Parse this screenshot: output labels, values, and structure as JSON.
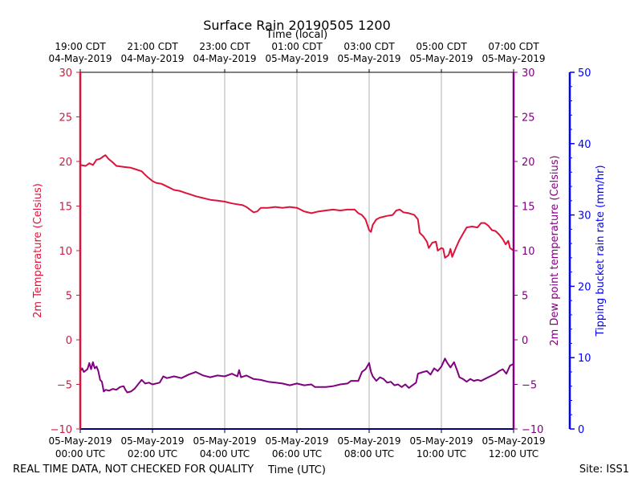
{
  "chart_data": {
    "type": "line",
    "title": "Surface Rain 20190505 1200",
    "xlabel_bottom": "Time (UTC)",
    "xlabel_top": "Time (local)",
    "ylabel_left": "2m Temperature (Celsius)",
    "ylabel_right1": "2m Dew point temperature (Celsius)",
    "ylabel_right2": "Tipping bucket rain rate (mm/hr)",
    "footer_left": "REAL TIME DATA, NOT CHECKED FOR QUALITY",
    "footer_right": "Site: ISS1",
    "x_range_hours": [
      0,
      12
    ],
    "y_left_range": [
      -10,
      30
    ],
    "y_right1_range": [
      -10,
      30
    ],
    "y_right2_range": [
      0,
      50
    ],
    "y_left_ticks": [
      "30",
      "25",
      "20",
      "15",
      "10",
      "5",
      "0",
      "−5",
      "−10"
    ],
    "y_right1_ticks": [
      "30",
      "25",
      "20",
      "15",
      "10",
      "5",
      "0",
      "−5",
      "−10"
    ],
    "y_right2_ticks": [
      "50",
      "40",
      "30",
      "20",
      "10",
      "0"
    ],
    "x_ticks_bottom": [
      {
        "hour": 0,
        "date": "05-May-2019",
        "time": "00:00 UTC"
      },
      {
        "hour": 2,
        "date": "05-May-2019",
        "time": "02:00 UTC"
      },
      {
        "hour": 4,
        "date": "05-May-2019",
        "time": "04:00 UTC"
      },
      {
        "hour": 6,
        "date": "05-May-2019",
        "time": "06:00 UTC"
      },
      {
        "hour": 8,
        "date": "05-May-2019",
        "time": "08:00 UTC"
      },
      {
        "hour": 10,
        "date": "05-May-2019",
        "time": "10:00 UTC"
      },
      {
        "hour": 12,
        "date": "05-May-2019",
        "time": "12:00 UTC"
      }
    ],
    "x_ticks_top": [
      {
        "hour": 0,
        "time": "19:00 CDT",
        "date": "04-May-2019"
      },
      {
        "hour": 2,
        "time": "21:00 CDT",
        "date": "04-May-2019"
      },
      {
        "hour": 4,
        "time": "23:00 CDT",
        "date": "04-May-2019"
      },
      {
        "hour": 6,
        "time": "01:00 CDT",
        "date": "05-May-2019"
      },
      {
        "hour": 8,
        "time": "03:00 CDT",
        "date": "05-May-2019"
      },
      {
        "hour": 10,
        "time": "05:00 CDT",
        "date": "05-May-2019"
      },
      {
        "hour": 12,
        "time": "07:00 CDT",
        "date": "05-May-2019"
      }
    ],
    "grid": "vertical",
    "series": [
      {
        "name": "2m Temperature",
        "color": "#dc143c",
        "axis": "left",
        "points": [
          [
            0,
            19.6
          ],
          [
            0.15,
            19.5
          ],
          [
            0.25,
            19.8
          ],
          [
            0.35,
            19.6
          ],
          [
            0.45,
            20.2
          ],
          [
            0.55,
            20.3
          ],
          [
            0.65,
            20.6
          ],
          [
            0.7,
            20.7
          ],
          [
            0.78,
            20.3
          ],
          [
            0.9,
            19.9
          ],
          [
            1.0,
            19.5
          ],
          [
            1.2,
            19.4
          ],
          [
            1.4,
            19.3
          ],
          [
            1.55,
            19.1
          ],
          [
            1.7,
            18.9
          ],
          [
            1.85,
            18.3
          ],
          [
            2.0,
            17.8
          ],
          [
            2.1,
            17.6
          ],
          [
            2.25,
            17.5
          ],
          [
            2.45,
            17.1
          ],
          [
            2.6,
            16.8
          ],
          [
            2.75,
            16.7
          ],
          [
            2.9,
            16.5
          ],
          [
            3.05,
            16.3
          ],
          [
            3.2,
            16.1
          ],
          [
            3.4,
            15.9
          ],
          [
            3.6,
            15.7
          ],
          [
            3.8,
            15.6
          ],
          [
            4.0,
            15.5
          ],
          [
            4.2,
            15.3
          ],
          [
            4.35,
            15.2
          ],
          [
            4.5,
            15.1
          ],
          [
            4.6,
            14.9
          ],
          [
            4.7,
            14.6
          ],
          [
            4.8,
            14.3
          ],
          [
            4.9,
            14.4
          ],
          [
            5.0,
            14.8
          ],
          [
            5.2,
            14.8
          ],
          [
            5.4,
            14.9
          ],
          [
            5.6,
            14.8
          ],
          [
            5.8,
            14.9
          ],
          [
            6.0,
            14.8
          ],
          [
            6.1,
            14.6
          ],
          [
            6.2,
            14.4
          ],
          [
            6.4,
            14.2
          ],
          [
            6.6,
            14.4
          ],
          [
            6.8,
            14.5
          ],
          [
            7.0,
            14.6
          ],
          [
            7.2,
            14.5
          ],
          [
            7.4,
            14.6
          ],
          [
            7.6,
            14.6
          ],
          [
            7.7,
            14.2
          ],
          [
            7.8,
            14.0
          ],
          [
            7.9,
            13.5
          ],
          [
            8.0,
            12.3
          ],
          [
            8.05,
            12.1
          ],
          [
            8.1,
            12.9
          ],
          [
            8.2,
            13.5
          ],
          [
            8.3,
            13.7
          ],
          [
            8.5,
            13.9
          ],
          [
            8.65,
            14.0
          ],
          [
            8.75,
            14.5
          ],
          [
            8.85,
            14.6
          ],
          [
            8.95,
            14.3
          ],
          [
            9.1,
            14.2
          ],
          [
            9.25,
            14.0
          ],
          [
            9.35,
            13.5
          ],
          [
            9.4,
            12.0
          ],
          [
            9.5,
            11.6
          ],
          [
            9.6,
            11.0
          ],
          [
            9.65,
            10.3
          ],
          [
            9.75,
            10.9
          ],
          [
            9.85,
            11.0
          ],
          [
            9.9,
            10.0
          ],
          [
            10.0,
            10.3
          ],
          [
            10.05,
            10.2
          ],
          [
            10.1,
            9.2
          ],
          [
            10.2,
            9.5
          ],
          [
            10.25,
            10.2
          ],
          [
            10.3,
            9.3
          ],
          [
            10.4,
            10.3
          ],
          [
            10.5,
            11.2
          ],
          [
            10.6,
            11.9
          ],
          [
            10.7,
            12.6
          ],
          [
            10.85,
            12.7
          ],
          [
            11.0,
            12.6
          ],
          [
            11.1,
            13.1
          ],
          [
            11.2,
            13.1
          ],
          [
            11.3,
            12.8
          ],
          [
            11.4,
            12.3
          ],
          [
            11.5,
            12.2
          ],
          [
            11.6,
            11.8
          ],
          [
            11.7,
            11.3
          ],
          [
            11.78,
            10.7
          ],
          [
            11.85,
            11.1
          ],
          [
            11.9,
            10.3
          ],
          [
            12.0,
            10.0
          ]
        ]
      },
      {
        "name": "2m Dew point temperature",
        "color": "#800080",
        "axis": "right1",
        "points": [
          [
            0,
            -3.5
          ],
          [
            0.05,
            -3.2
          ],
          [
            0.1,
            -3.6
          ],
          [
            0.2,
            -3.3
          ],
          [
            0.25,
            -2.6
          ],
          [
            0.3,
            -3.3
          ],
          [
            0.35,
            -2.5
          ],
          [
            0.4,
            -3.2
          ],
          [
            0.45,
            -3.0
          ],
          [
            0.5,
            -3.5
          ],
          [
            0.55,
            -4.5
          ],
          [
            0.6,
            -4.7
          ],
          [
            0.65,
            -5.8
          ],
          [
            0.7,
            -5.6
          ],
          [
            0.8,
            -5.7
          ],
          [
            0.9,
            -5.5
          ],
          [
            1.0,
            -5.6
          ],
          [
            1.1,
            -5.3
          ],
          [
            1.2,
            -5.2
          ],
          [
            1.25,
            -5.6
          ],
          [
            1.3,
            -5.9
          ],
          [
            1.4,
            -5.8
          ],
          [
            1.5,
            -5.5
          ],
          [
            1.6,
            -5.0
          ],
          [
            1.7,
            -4.5
          ],
          [
            1.8,
            -4.9
          ],
          [
            1.9,
            -4.8
          ],
          [
            2.0,
            -5.0
          ],
          [
            2.2,
            -4.8
          ],
          [
            2.3,
            -4.1
          ],
          [
            2.4,
            -4.3
          ],
          [
            2.6,
            -4.1
          ],
          [
            2.8,
            -4.3
          ],
          [
            3.0,
            -3.9
          ],
          [
            3.2,
            -3.6
          ],
          [
            3.4,
            -4.0
          ],
          [
            3.6,
            -4.2
          ],
          [
            3.8,
            -4.0
          ],
          [
            4.0,
            -4.1
          ],
          [
            4.2,
            -3.8
          ],
          [
            4.35,
            -4.1
          ],
          [
            4.4,
            -3.4
          ],
          [
            4.45,
            -4.2
          ],
          [
            4.6,
            -4.0
          ],
          [
            4.8,
            -4.4
          ],
          [
            5.0,
            -4.5
          ],
          [
            5.2,
            -4.7
          ],
          [
            5.4,
            -4.8
          ],
          [
            5.6,
            -4.9
          ],
          [
            5.8,
            -5.1
          ],
          [
            6.0,
            -4.9
          ],
          [
            6.2,
            -5.1
          ],
          [
            6.4,
            -5.0
          ],
          [
            6.5,
            -5.3
          ],
          [
            6.6,
            -5.3
          ],
          [
            6.8,
            -5.3
          ],
          [
            7.0,
            -5.2
          ],
          [
            7.2,
            -5.0
          ],
          [
            7.4,
            -4.9
          ],
          [
            7.5,
            -4.6
          ],
          [
            7.7,
            -4.6
          ],
          [
            7.8,
            -3.6
          ],
          [
            7.9,
            -3.3
          ],
          [
            8.0,
            -2.6
          ],
          [
            8.05,
            -3.6
          ],
          [
            8.1,
            -4.1
          ],
          [
            8.2,
            -4.6
          ],
          [
            8.3,
            -4.2
          ],
          [
            8.4,
            -4.4
          ],
          [
            8.5,
            -4.8
          ],
          [
            8.6,
            -4.7
          ],
          [
            8.7,
            -5.1
          ],
          [
            8.8,
            -5.0
          ],
          [
            8.9,
            -5.3
          ],
          [
            9.0,
            -5.0
          ],
          [
            9.1,
            -5.4
          ],
          [
            9.2,
            -5.1
          ],
          [
            9.3,
            -4.8
          ],
          [
            9.35,
            -3.8
          ],
          [
            9.5,
            -3.6
          ],
          [
            9.6,
            -3.5
          ],
          [
            9.7,
            -3.9
          ],
          [
            9.8,
            -3.2
          ],
          [
            9.9,
            -3.5
          ],
          [
            10.0,
            -3.0
          ],
          [
            10.1,
            -2.1
          ],
          [
            10.15,
            -2.5
          ],
          [
            10.25,
            -3.1
          ],
          [
            10.35,
            -2.5
          ],
          [
            10.45,
            -3.6
          ],
          [
            10.5,
            -4.2
          ],
          [
            10.6,
            -4.4
          ],
          [
            10.7,
            -4.7
          ],
          [
            10.8,
            -4.4
          ],
          [
            10.9,
            -4.6
          ],
          [
            11.0,
            -4.5
          ],
          [
            11.1,
            -4.6
          ],
          [
            11.2,
            -4.4
          ],
          [
            11.4,
            -4.0
          ],
          [
            11.5,
            -3.8
          ],
          [
            11.6,
            -3.5
          ],
          [
            11.7,
            -3.3
          ],
          [
            11.8,
            -3.8
          ],
          [
            11.9,
            -2.9
          ],
          [
            12.0,
            -2.7
          ]
        ]
      },
      {
        "name": "Tipping bucket rain rate",
        "color": "#0000ff",
        "axis": "right2",
        "points": [
          [
            0,
            0
          ],
          [
            12,
            0
          ]
        ]
      }
    ]
  }
}
